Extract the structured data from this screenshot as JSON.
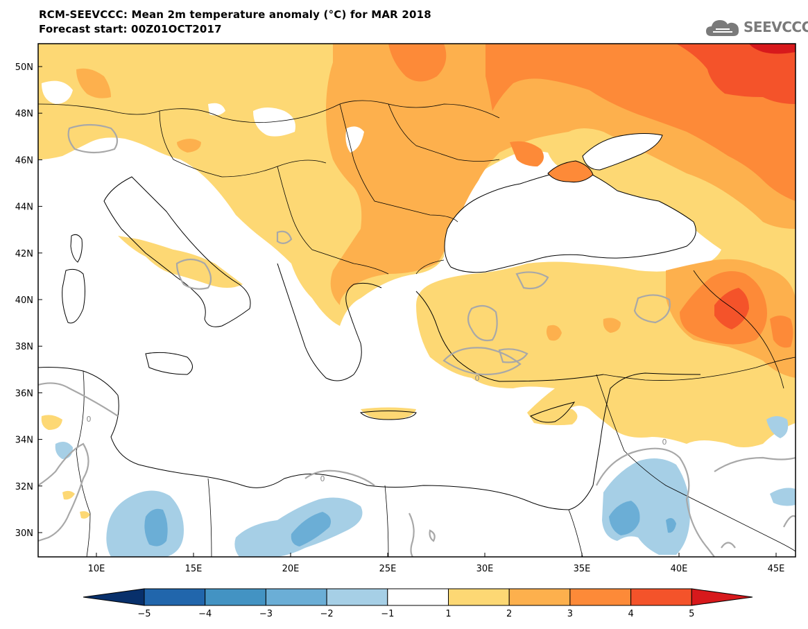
{
  "header": {
    "title_line1": "RCM-SEEVCCC: Mean 2m temperature anomaly (°C) for MAR 2018",
    "title_line2": "Forecast start: 00Z01OCT2017",
    "logo_text": "SEEVCCC"
  },
  "map": {
    "lat_labels": [
      "50N",
      "48N",
      "46N",
      "44N",
      "42N",
      "40N",
      "38N",
      "36N",
      "34N",
      "32N",
      "30N"
    ],
    "lon_labels": [
      "10E",
      "15E",
      "20E",
      "25E",
      "30E",
      "35E",
      "40E",
      "45E"
    ],
    "contour_label": "0"
  },
  "colorbar": {
    "tick_labels": [
      "−5",
      "−4",
      "−3",
      "−2",
      "−1",
      "1",
      "2",
      "3",
      "4",
      "5"
    ],
    "colors": [
      "#08306b",
      "#2166ac",
      "#4393c3",
      "#6baed6",
      "#a6cfe6",
      "#ffffff",
      "#fdd874",
      "#fdb04d",
      "#fd8a38",
      "#f4532a",
      "#d7191c"
    ]
  }
}
